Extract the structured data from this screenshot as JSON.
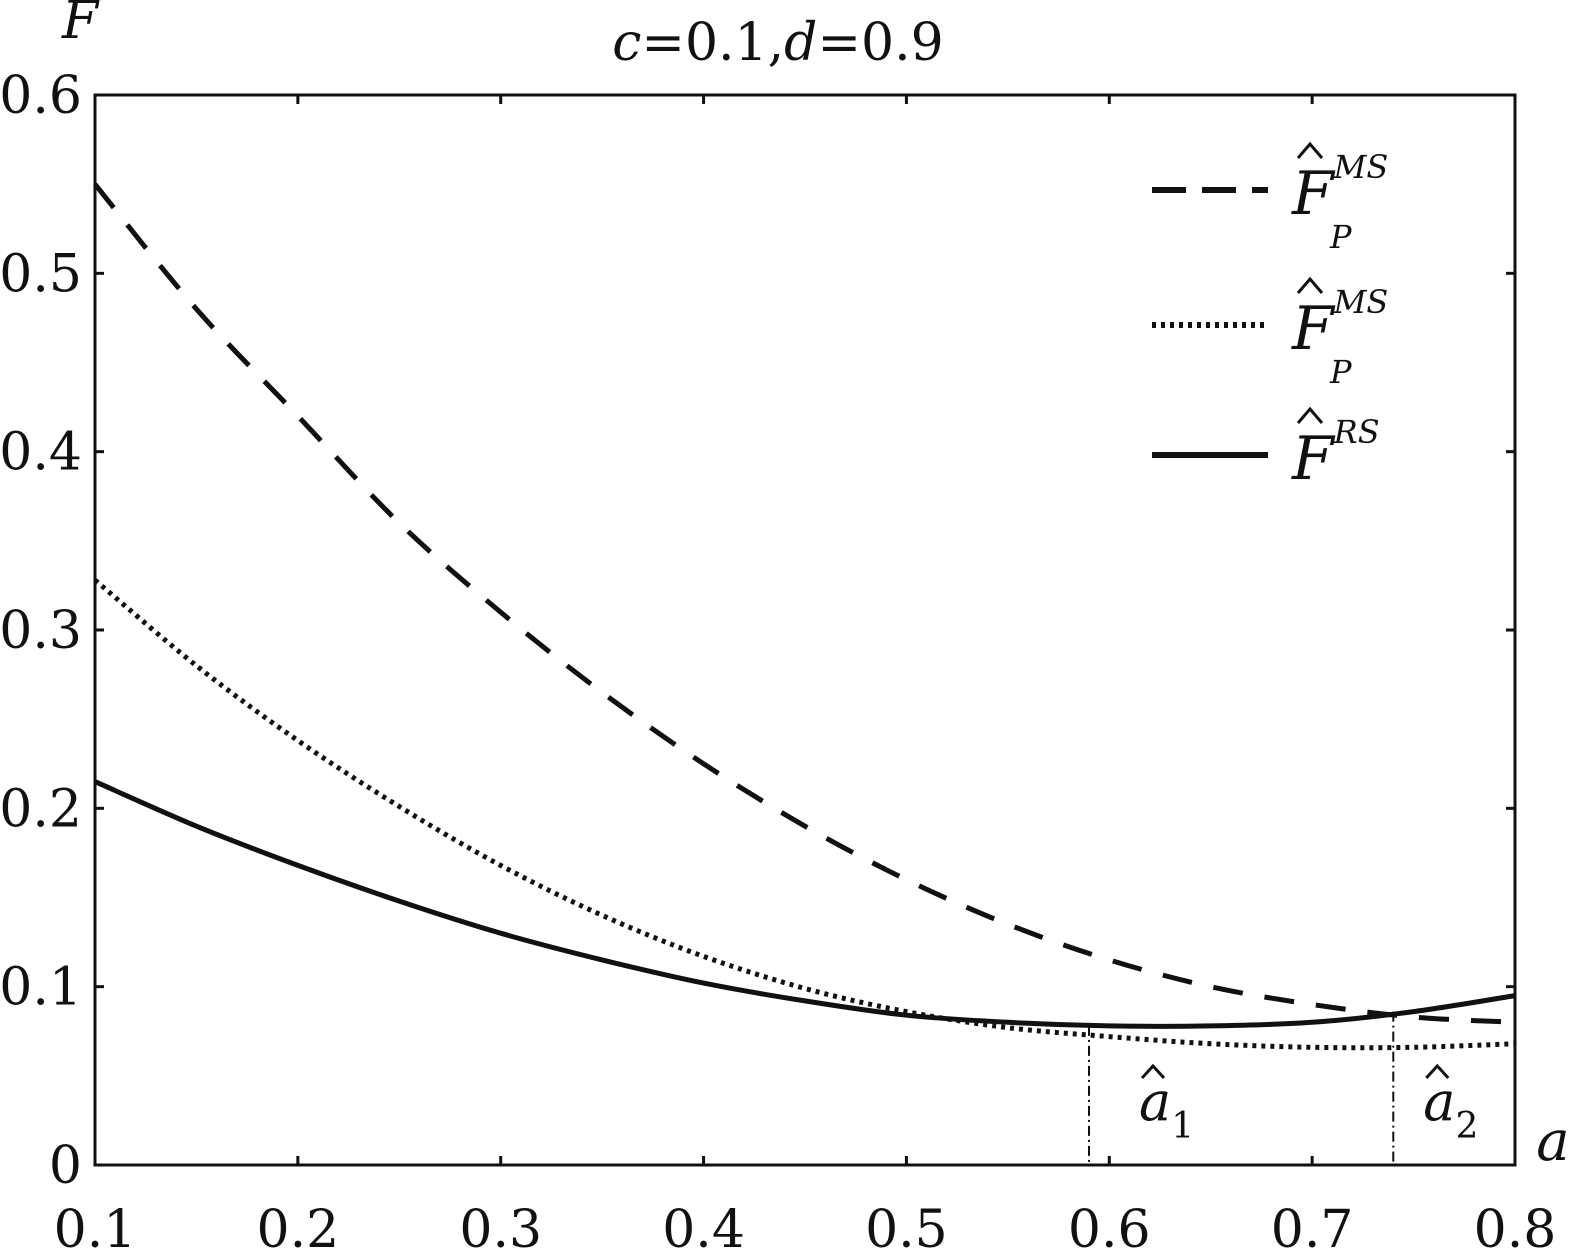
{
  "chart_data": {
    "type": "line",
    "title": "c=0.1,d=0.9",
    "title_parts": [
      {
        "text": "c",
        "italic": true
      },
      {
        "text": "=0.1,",
        "italic": false
      },
      {
        "text": "d",
        "italic": true
      },
      {
        "text": "=0.9",
        "italic": false
      }
    ],
    "xlabel": "a",
    "ylabel": "F",
    "xlim": [
      0.1,
      0.8
    ],
    "ylim": [
      0,
      0.6
    ],
    "xticks": [
      "0.1",
      "0.2",
      "0.3",
      "0.4",
      "0.5",
      "0.6",
      "0.7",
      "0.8"
    ],
    "yticks": [
      "0",
      "0.1",
      "0.2",
      "0.3",
      "0.4",
      "0.5",
      "0.6"
    ],
    "grid": false,
    "legend_position": "top-right",
    "series": [
      {
        "name": "F̂_P^MS",
        "legend": {
          "base": "F",
          "sup": "MS",
          "sub": "P"
        },
        "style": "dashed",
        "color": "#111111",
        "x": [
          0.1,
          0.15,
          0.2,
          0.25,
          0.3,
          0.35,
          0.4,
          0.45,
          0.5,
          0.55,
          0.6,
          0.65,
          0.7,
          0.75,
          0.8
        ],
        "y": [
          0.55,
          0.48,
          0.42,
          0.36,
          0.31,
          0.265,
          0.225,
          0.19,
          0.16,
          0.135,
          0.115,
          0.1,
          0.09,
          0.083,
          0.08
        ]
      },
      {
        "name": "F̂_P^MS",
        "legend": {
          "base": "F",
          "sup": "MS",
          "sub": "P"
        },
        "style": "dotted",
        "color": "#111111",
        "x": [
          0.1,
          0.15,
          0.2,
          0.25,
          0.3,
          0.35,
          0.4,
          0.45,
          0.5,
          0.55,
          0.6,
          0.65,
          0.7,
          0.75,
          0.8
        ],
        "y": [
          0.328,
          0.28,
          0.238,
          0.201,
          0.168,
          0.14,
          0.117,
          0.099,
          0.086,
          0.077,
          0.072,
          0.068,
          0.066,
          0.066,
          0.068
        ]
      },
      {
        "name": "F̂^RS",
        "legend": {
          "base": "F",
          "sup": "RS",
          "sub": ""
        },
        "style": "solid",
        "color": "#111111",
        "x": [
          0.1,
          0.15,
          0.2,
          0.25,
          0.3,
          0.35,
          0.4,
          0.45,
          0.5,
          0.55,
          0.6,
          0.65,
          0.7,
          0.75,
          0.8
        ],
        "y": [
          0.215,
          0.19,
          0.168,
          0.148,
          0.13,
          0.115,
          0.102,
          0.092,
          0.084,
          0.08,
          0.078,
          0.078,
          0.08,
          0.086,
          0.095
        ]
      }
    ],
    "annotations": [
      {
        "label_base": "a",
        "label_sub": "1",
        "x": 0.59,
        "y_top": 0.078
      },
      {
        "label_base": "a",
        "label_sub": "2",
        "x": 0.74,
        "y_top": 0.086
      }
    ]
  }
}
